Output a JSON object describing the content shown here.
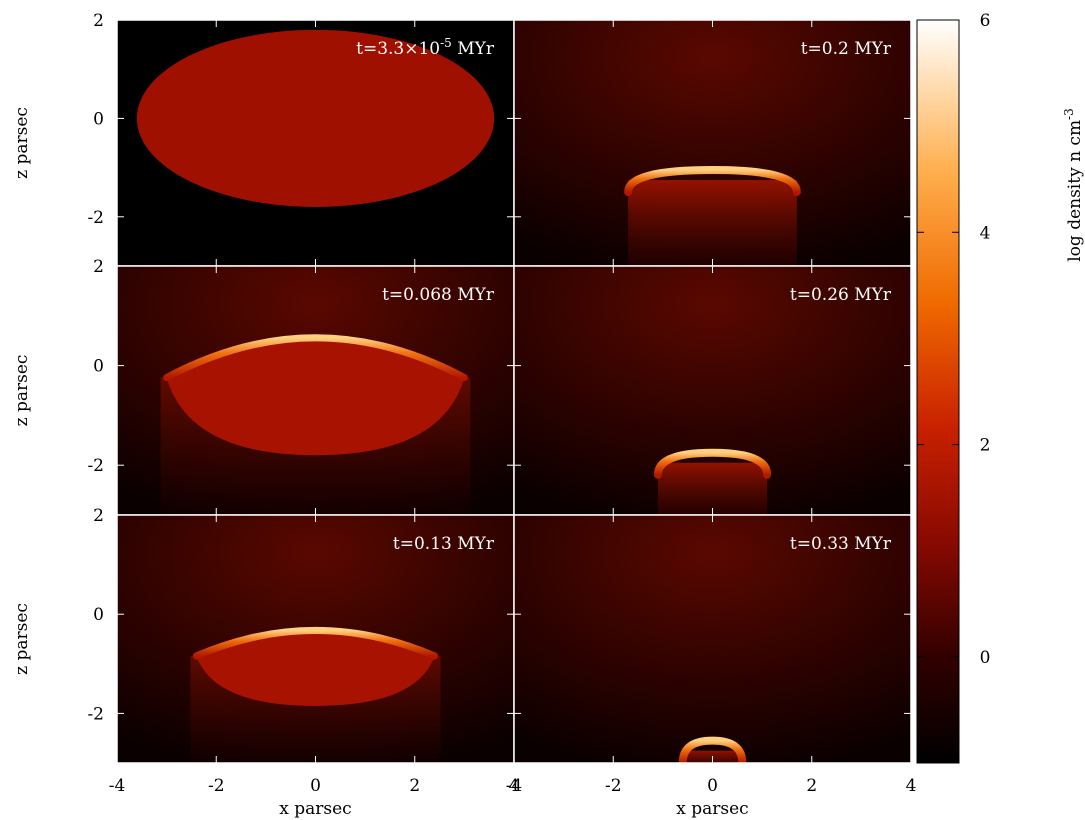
{
  "chart_data": {
    "type": "heatmap",
    "colorbar": {
      "label": "log density n cm",
      "label_superscript": "-3",
      "range": [
        -1,
        6
      ],
      "ticks": [
        "6",
        "4",
        "2",
        "0"
      ],
      "tick_values": [
        6,
        4,
        2,
        0
      ],
      "colors": [
        "#000000",
        "#300000",
        "#8a0a00",
        "#c82000",
        "#f06a00",
        "#ffb050",
        "#ffffff"
      ]
    },
    "xlabel": "x parsec",
    "ylabel": "z parsec",
    "xlim": [
      -4,
      4
    ],
    "ylim": [
      -3,
      2
    ],
    "xticks": [
      -4,
      -2,
      0,
      2,
      4
    ],
    "xtick_labels_left": [
      "-4",
      "-2",
      "0",
      "2",
      "4"
    ],
    "xtick_labels_right": [
      "-4",
      "-2",
      "0",
      "2",
      "4"
    ],
    "yticks": [
      2,
      0,
      -2
    ],
    "ytick_labels": [
      "2",
      "0",
      "-2"
    ],
    "panels": [
      {
        "id": "p1",
        "time": "t=3.3×10",
        "time_sup": "-5",
        "time_unit": " MYr",
        "cloud_top_z": 1.8,
        "cloud_bottom_z": -1.8,
        "cloud_half_width": 3.6,
        "shell": false
      },
      {
        "id": "p2",
        "time": "t=0.2 MYr",
        "cloud_top_z": -1.05,
        "cloud_half_width": 1.7,
        "shell": true
      },
      {
        "id": "p3",
        "time": "t=0.068 MYr",
        "cloud_top_z": 0.6,
        "cloud_bottom_z": -1.8,
        "cloud_half_width": 3.0,
        "shell": true
      },
      {
        "id": "p4",
        "time": "t=0.26 MYr",
        "cloud_top_z": -1.75,
        "cloud_half_width": 1.1,
        "shell": true
      },
      {
        "id": "p5",
        "time": "t=0.13 MYr",
        "cloud_top_z": -0.3,
        "cloud_bottom_z": -1.85,
        "cloud_half_width": 2.4,
        "shell": true
      },
      {
        "id": "p6",
        "time": "t=0.33 MYr",
        "cloud_top_z": -2.55,
        "cloud_half_width": 0.6,
        "shell": true
      }
    ]
  }
}
